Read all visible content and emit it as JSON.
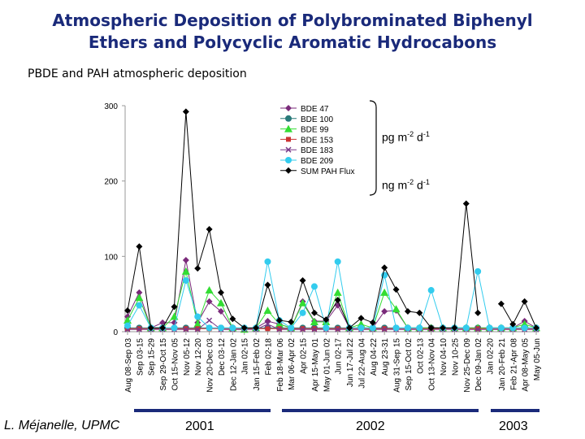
{
  "title_line1": "Atmospheric Deposition of Polybrominated Biphenyl",
  "title_line2": "Ethers and Polycyclic Aromatic Hydrocabons",
  "subtitle": "PBDE and PAH atmospheric  deposition",
  "author": "L. Méjanelle, UPMC",
  "years": [
    "2001",
    "2002",
    "2003"
  ],
  "units": {
    "pbde": {
      "base": "pg m",
      "e1": "-2",
      "mid": " d",
      "e2": "-1"
    },
    "pah": {
      "base": "ng m",
      "e1": "-2",
      "mid": " d",
      "e2": "-1"
    }
  },
  "colors": {
    "bde47": "#7a2a7a",
    "bde100": "#2a7a7a",
    "bde99": "#33dd33",
    "bde153": "#cc3333",
    "bde183": "#7a3a8a",
    "bde209": "#33ccee",
    "sum_pah": "#000000",
    "year_bar": "#1a2a7a"
  },
  "chart_data": {
    "type": "line",
    "ylim": [
      0,
      300
    ],
    "yticks": [
      0,
      100,
      200,
      300
    ],
    "categories": [
      "Aug 08-Sep 03",
      "Sep 03-15",
      "Sep 15-29",
      "Sep 29-Oct 15",
      "Oct 15-Nov 05",
      "Nov 05-12",
      "Nov 12-20",
      "Nov 20-Dec 03",
      "Dec 03-12",
      "Dec 12-Jan 02",
      "Jan 02-15",
      "Jan 15-Feb 02",
      "Feb 02-18",
      "Feb 18-Mar 06",
      "Mar 06-Apr 02",
      "Apr 02-15",
      "Apr 15-May 01",
      "May 01-Jun 02",
      "Jun 02-17",
      "Jun 17-Jul 22",
      "Jul 22-Aug 04",
      "Aug 04-22",
      "Aug 23-31",
      "Aug 31-Sep 15",
      "Sep 15-Oct 02",
      "Oct 02-13",
      "Oct 13-Nov 04",
      "Nov 04-10",
      "Nov 10-25",
      "Nov 25-Dec 09",
      "Dec 09-Jan 02",
      "Jan 02-20",
      "Jan 20-Feb 21",
      "Feb 21-Apr 08",
      "Apr 08-May 05",
      "May 05-Jun"
    ],
    "series": [
      {
        "name": "BDE 47",
        "marker": "diamond",
        "color_key": "bde47",
        "values": [
          20,
          52,
          5,
          12,
          12,
          95,
          12,
          40,
          27,
          5,
          3,
          5,
          14,
          10,
          5,
          40,
          14,
          14,
          35,
          5,
          5,
          5,
          27,
          28,
          5,
          5,
          5,
          5,
          5,
          5,
          5,
          5,
          5,
          5,
          14,
          5
        ]
      },
      {
        "name": "BDE 100",
        "marker": "circle",
        "color_key": "bde100",
        "values": [
          5,
          5,
          5,
          5,
          5,
          5,
          5,
          5,
          5,
          5,
          5,
          5,
          5,
          5,
          5,
          5,
          5,
          5,
          5,
          5,
          5,
          5,
          5,
          5,
          5,
          5,
          5,
          5,
          5,
          5,
          5,
          5,
          5,
          5,
          5,
          5
        ]
      },
      {
        "name": "BDE 99",
        "marker": "triangle",
        "color_key": "bde99",
        "values": [
          15,
          45,
          5,
          5,
          20,
          80,
          10,
          55,
          38,
          5,
          3,
          5,
          28,
          10,
          5,
          38,
          13,
          13,
          52,
          5,
          10,
          5,
          52,
          30,
          5,
          5,
          5,
          5,
          5,
          5,
          5,
          5,
          5,
          5,
          10,
          5
        ]
      },
      {
        "name": "BDE 153",
        "marker": "square",
        "color_key": "bde153",
        "values": [
          4,
          4,
          4,
          4,
          4,
          4,
          4,
          4,
          4,
          4,
          4,
          4,
          4,
          4,
          4,
          4,
          4,
          4,
          4,
          4,
          4,
          4,
          4,
          4,
          4,
          4,
          4,
          4,
          4,
          4,
          4,
          4,
          4,
          4,
          4,
          4
        ]
      },
      {
        "name": "BDE 183",
        "marker": "x",
        "color_key": "bde183",
        "values": [
          3,
          3,
          3,
          3,
          3,
          3,
          3,
          15,
          3,
          3,
          3,
          3,
          10,
          3,
          3,
          3,
          3,
          3,
          3,
          3,
          3,
          3,
          3,
          3,
          3,
          3,
          3,
          3,
          3,
          3,
          3,
          3,
          3,
          3,
          3,
          3
        ]
      },
      {
        "name": "BDE 209",
        "marker": "circle",
        "color_key": "bde209",
        "values": [
          8,
          35,
          5,
          5,
          5,
          68,
          20,
          5,
          5,
          5,
          5,
          5,
          93,
          15,
          5,
          25,
          60,
          5,
          93,
          5,
          5,
          5,
          75,
          5,
          5,
          5,
          55,
          5,
          5,
          5,
          80,
          5,
          5,
          5,
          5,
          5
        ]
      },
      {
        "name": "SUM PAH Flux",
        "marker": "diamond",
        "color_key": "sum_pah",
        "values": [
          28,
          113,
          5,
          5,
          33,
          292,
          84,
          136,
          52,
          17,
          5,
          5,
          62,
          15,
          13,
          68,
          25,
          16,
          42,
          5,
          18,
          12,
          85,
          56,
          27,
          25,
          5,
          5,
          5,
          170,
          25,
          null,
          37,
          10,
          40,
          5
        ]
      }
    ]
  }
}
